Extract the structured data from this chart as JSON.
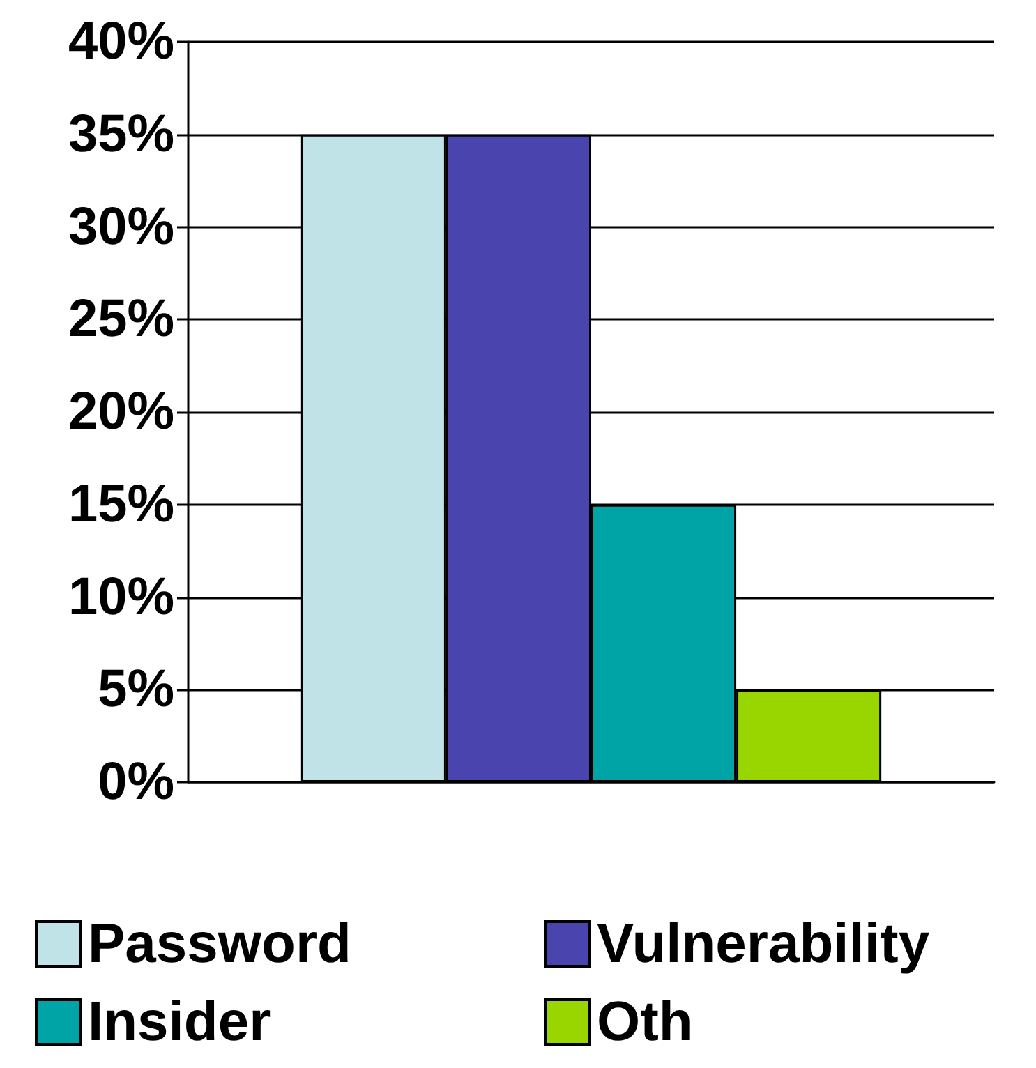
{
  "chart_data": {
    "type": "bar",
    "categories": [
      null
    ],
    "series": [
      {
        "name": "Password",
        "color": "#bfe3e6",
        "values": [
          35
        ]
      },
      {
        "name": "Vulnerability",
        "color": "#4a44ae",
        "values": [
          35
        ]
      },
      {
        "name": "Insider",
        "color": "#00a3a6",
        "values": [
          15
        ]
      },
      {
        "name": "Oth",
        "color": "#99d600",
        "values": [
          5
        ]
      }
    ],
    "ylim": [
      0,
      40
    ],
    "yticks": [
      {
        "value": 0,
        "label": "0%"
      },
      {
        "value": 5,
        "label": "5%"
      },
      {
        "value": 10,
        "label": "10%"
      },
      {
        "value": 15,
        "label": "15%"
      },
      {
        "value": 20,
        "label": "20%"
      },
      {
        "value": 25,
        "label": "25%"
      },
      {
        "value": 30,
        "label": "30%"
      },
      {
        "value": 35,
        "label": "35%"
      },
      {
        "value": 40,
        "label": "40%"
      }
    ],
    "grid": "y",
    "legend": "bottom"
  }
}
